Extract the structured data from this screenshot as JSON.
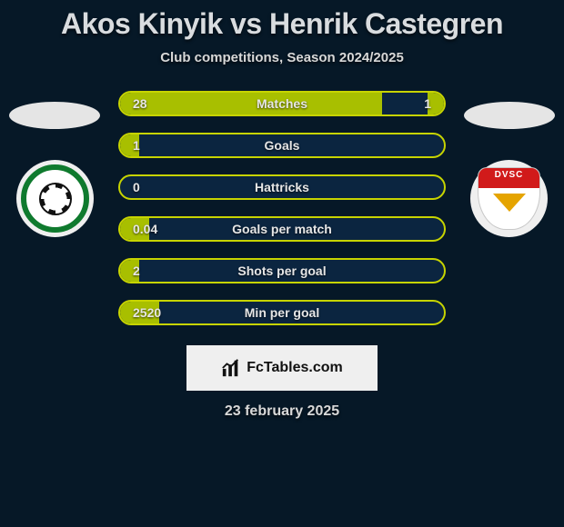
{
  "title": "Akos Kinyik vs Henrik Castegren",
  "subtitle": "Club competitions, Season 2024/2025",
  "date": "23 february 2025",
  "footer_brand": "FcTables.com",
  "colors": {
    "page_bg": "#061827",
    "bar_track": "#0b2540",
    "bar_border": "#c7d400",
    "bar_fill": "#a8bf00",
    "text": "#e6e6e6",
    "title_text": "#d9dcdf"
  },
  "bars": [
    {
      "label": "Matches",
      "left": "28",
      "right": "1",
      "fill_left_pct": 81,
      "fill_right_pct": 5
    },
    {
      "label": "Goals",
      "left": "1",
      "right": "",
      "fill_left_pct": 6,
      "fill_right_pct": 0
    },
    {
      "label": "Hattricks",
      "left": "0",
      "right": "",
      "fill_left_pct": 0,
      "fill_right_pct": 0
    },
    {
      "label": "Goals per match",
      "left": "0.04",
      "right": "",
      "fill_left_pct": 9,
      "fill_right_pct": 0
    },
    {
      "label": "Shots per goal",
      "left": "2",
      "right": "",
      "fill_left_pct": 6,
      "fill_right_pct": 0
    },
    {
      "label": "Min per goal",
      "left": "2520",
      "right": "",
      "fill_left_pct": 12,
      "fill_right_pct": 0
    }
  ],
  "badges": {
    "left_team_abbr": "",
    "right_team_abbr": "DVSC"
  }
}
